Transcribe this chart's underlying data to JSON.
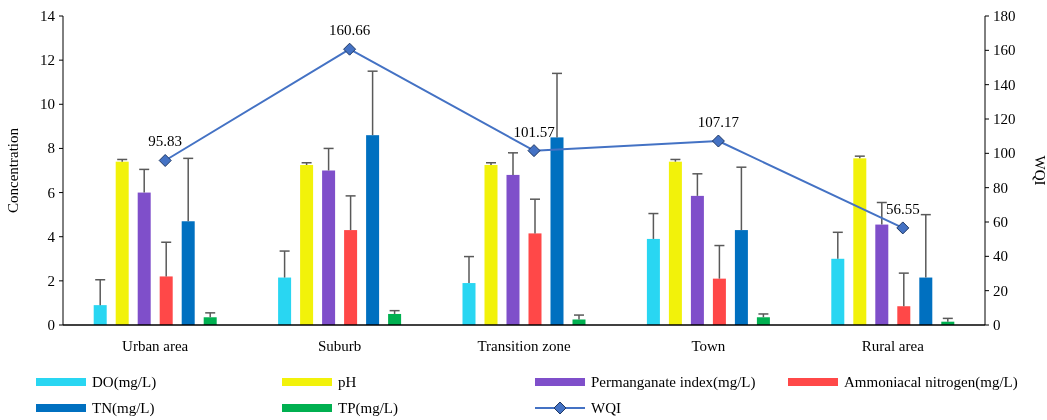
{
  "chart_data": {
    "type": "bar",
    "ylabel": "Concentration",
    "y2label": "WQI",
    "categories": [
      "Urban area",
      "Suburb",
      "Transition zone",
      "Town",
      "Rural area"
    ],
    "ylim": [
      0,
      14
    ],
    "yticks": [
      0,
      2,
      4,
      6,
      8,
      10,
      12,
      14
    ],
    "y2lim": [
      0,
      180
    ],
    "y2ticks": [
      0,
      20,
      40,
      60,
      80,
      100,
      120,
      140,
      160,
      180
    ],
    "grid": false,
    "legend": "bottom",
    "series": [
      {
        "name": "DO(mg/L)",
        "color": "#29d6f2",
        "values": [
          0.9,
          2.15,
          1.9,
          3.9,
          3.0
        ],
        "errors": [
          [
            0.9,
            2.05
          ],
          [
            2.15,
            3.35
          ],
          [
            1.9,
            3.1
          ],
          [
            3.9,
            5.05
          ],
          [
            3.0,
            4.2
          ]
        ]
      },
      {
        "name": "pH",
        "color": "#f2f20a",
        "values": [
          7.4,
          7.25,
          7.25,
          7.4,
          7.55
        ],
        "errors": [
          [
            7.4,
            7.5
          ],
          [
            7.25,
            7.35
          ],
          [
            7.25,
            7.35
          ],
          [
            7.4,
            7.5
          ],
          [
            7.55,
            7.65
          ]
        ]
      },
      {
        "name": "Permanganate index(mg/L)",
        "color": "#7f4fca",
        "values": [
          6.0,
          7.0,
          6.8,
          5.85,
          4.55
        ],
        "errors": [
          [
            6.0,
            7.05
          ],
          [
            7.0,
            8.0
          ],
          [
            6.8,
            7.8
          ],
          [
            5.85,
            6.85
          ],
          [
            4.55,
            5.55
          ]
        ]
      },
      {
        "name": "Ammoniacal nitrogen(mg/L)",
        "color": "#ff4848",
        "values": [
          2.2,
          4.3,
          4.15,
          2.1,
          0.85
        ],
        "errors": [
          [
            2.2,
            3.75
          ],
          [
            4.3,
            5.85
          ],
          [
            4.15,
            5.7
          ],
          [
            2.1,
            3.6
          ],
          [
            0.85,
            2.35
          ]
        ]
      },
      {
        "name": "TN(mg/L)",
        "color": "#0070c0",
        "values": [
          4.7,
          8.6,
          8.5,
          4.3,
          2.15
        ],
        "errors": [
          [
            4.7,
            7.55
          ],
          [
            8.6,
            11.5
          ],
          [
            8.5,
            11.4
          ],
          [
            4.3,
            7.15
          ],
          [
            2.15,
            5.0
          ]
        ]
      },
      {
        "name": "TP(mg/L)",
        "color": "#00b050",
        "values": [
          0.35,
          0.5,
          0.25,
          0.35,
          0.15
        ],
        "errors": [
          [
            0.35,
            0.55
          ],
          [
            0.5,
            0.65
          ],
          [
            0.25,
            0.45
          ],
          [
            0.35,
            0.5
          ],
          [
            0.15,
            0.3
          ]
        ]
      },
      {
        "name": "WQI",
        "type": "line",
        "axis": "y2",
        "color": "#4472c4",
        "marker": "diamond",
        "line_style": "solid",
        "values": [
          95.83,
          160.66,
          101.57,
          107.17,
          56.55
        ],
        "value_labels": [
          "95.83",
          "160.66",
          "101.57",
          "107.17",
          "56.55"
        ]
      }
    ]
  }
}
